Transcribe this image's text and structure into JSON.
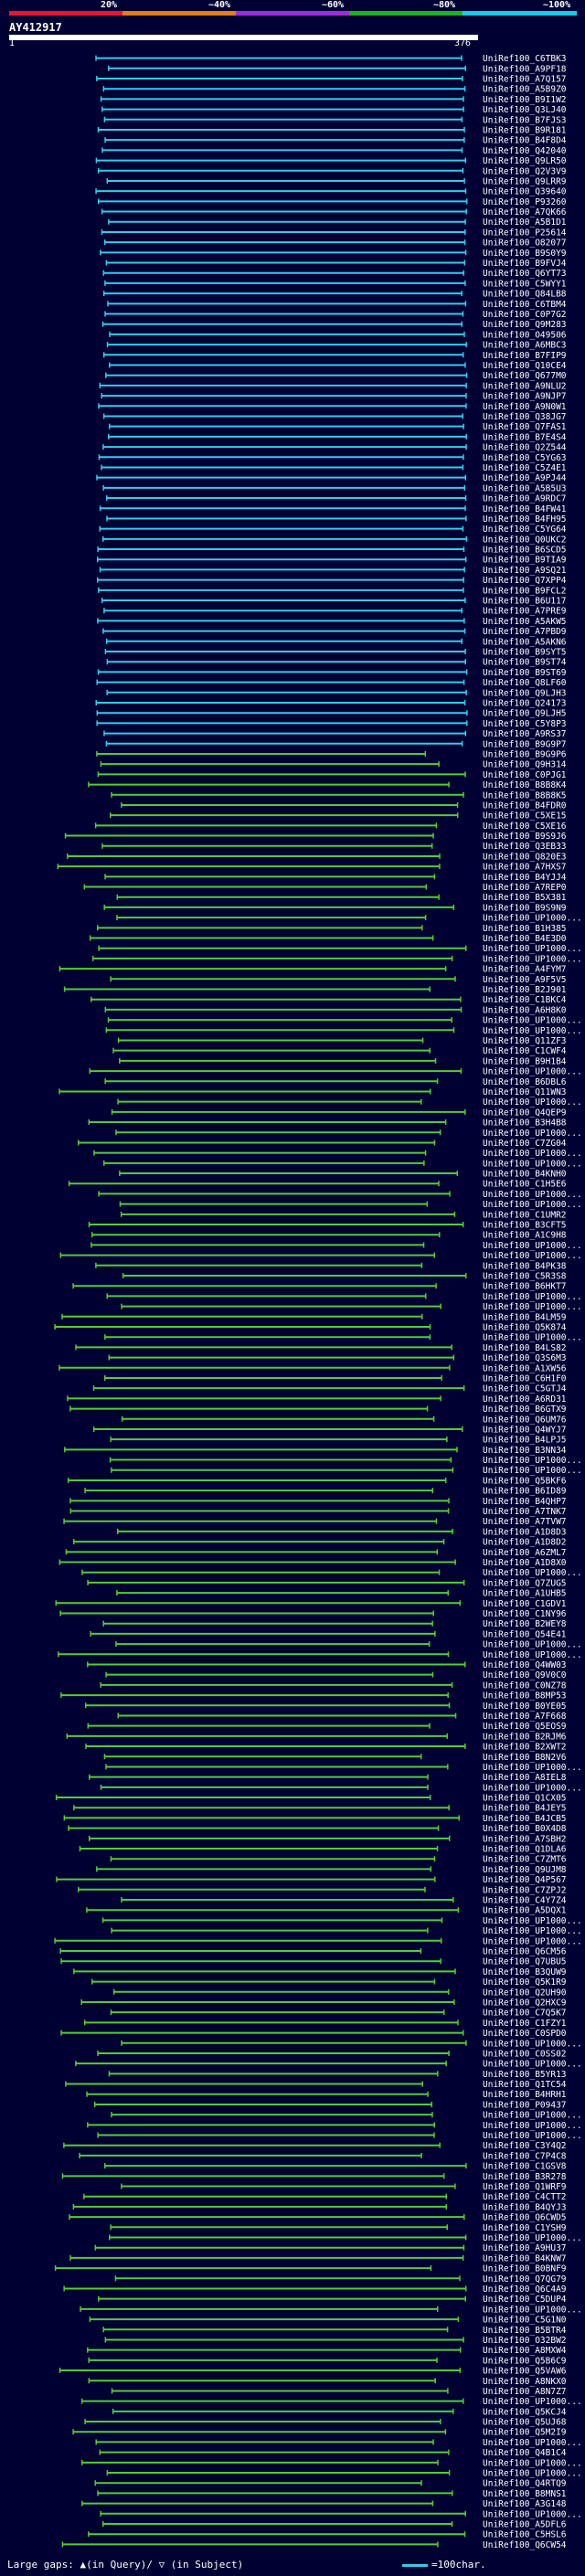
{
  "scale": {
    "labels": [
      "20%",
      "~40%",
      "~60%",
      "~80%",
      "~100%"
    ],
    "colors": [
      "#e8172f",
      "#e87c17",
      "#9b2fd6",
      "#1bb31b",
      "#1fc8e8"
    ]
  },
  "query": {
    "name": "AY412917",
    "start": "1",
    "end": "376"
  },
  "hit_colors": {
    "high": "#33ccee",
    "mid": "#55cc33"
  },
  "hits": [
    "UniRef100_C6TBK3",
    "UniRef100_A9PF18",
    "UniRef100_A7Q157",
    "UniRef100_A5B9Z0",
    "UniRef100_B9I1W2",
    "UniRef100_Q3LJ40",
    "UniRef100_B7FJS3",
    "UniRef100_B9R181",
    "UniRef100_B4F8D4",
    "UniRef100_Q42040",
    "UniRef100_Q9LR50",
    "UniRef100_Q2V3V9",
    "UniRef100_Q9LRR9",
    "UniRef100_Q39640",
    "UniRef100_P93260",
    "UniRef100_A7QK66",
    "UniRef100_A5B1D1",
    "UniRef100_P25614",
    "UniRef100_O82077",
    "UniRef100_B9S0Y9",
    "UniRef100_B9FVJ4",
    "UniRef100_Q6YT73",
    "UniRef100_C5WYY1",
    "UniRef100_Q84LB8",
    "UniRef100_C6TBM4",
    "UniRef100_C0P7G2",
    "UniRef100_Q9M283",
    "UniRef100_O49506",
    "UniRef100_A6MBC3",
    "UniRef100_B7FIP9",
    "UniRef100_Q10CE4",
    "UniRef100_Q677M0",
    "UniRef100_A9NLU2",
    "UniRef100_A9NJP7",
    "UniRef100_A9N0W1",
    "UniRef100_Q38JG7",
    "UniRef100_Q7FAS1",
    "UniRef100_B7E4S4",
    "UniRef100_Q2Z544",
    "UniRef100_C5YG63",
    "UniRef100_C5Z4E1",
    "UniRef100_A9PJ44",
    "UniRef100_A5B5U3",
    "UniRef100_A9RDC7",
    "UniRef100_B4FW41",
    "UniRef100_B4FH95",
    "UniRef100_C5YG64",
    "UniRef100_Q0UKC2",
    "UniRef100_B6SCD5",
    "UniRef100_B9TIA9",
    "UniRef100_A9SQ21",
    "UniRef100_Q7XPP4",
    "UniRef100_B9FCL2",
    "UniRef100_B6U117",
    "UniRef100_A7PRE9",
    "UniRef100_A5AKW5",
    "UniRef100_A7PBD9",
    "UniRef100_A5AKN6",
    "UniRef100_B9SYT5",
    "UniRef100_B9ST74",
    "UniRef100_B9ST69",
    "UniRef100_Q8LF60",
    "UniRef100_Q9LJH3",
    "UniRef100_Q24173",
    "UniRef100_Q9LJH5",
    "UniRef100_C5Y8P3",
    "UniRef100_A9RS37",
    "UniRef100_B9G9P7",
    "UniRef100_B9G9P6",
    "UniRef100_Q9H314",
    "UniRef100_C0PJG1",
    "UniRef100_B8B8K4",
    "UniRef100_B8B8K5",
    "UniRef100_B4FDR0",
    "UniRef100_C5XE15",
    "UniRef100_C5XE16",
    "UniRef100_B9S9J6",
    "UniRef100_Q3EB33",
    "UniRef100_Q820E3",
    "UniRef100_A7HXS7",
    "UniRef100_B4YJJ4",
    "UniRef100_A7REP0",
    "UniRef100_B5X381",
    "UniRef100_B9S9N9",
    "UniRef100_UP1000...",
    "UniRef100_B1H385",
    "UniRef100_B4E3D0",
    "UniRef100_UP1000...",
    "UniRef100_UP1000...",
    "UniRef100_A4FYM7",
    "UniRef100_A9F5V5",
    "UniRef100_B2J901",
    "UniRef100_C1BKC4",
    "UniRef100_A6H8K0",
    "UniRef100_UP1000...",
    "UniRef100_UP1000...",
    "UniRef100_Q11ZF3",
    "UniRef100_C1CWF4",
    "UniRef100_B9H1B4",
    "UniRef100_UP1000...",
    "UniRef100_B6DBL6",
    "UniRef100_Q11WN3",
    "UniRef100_UP1000...",
    "UniRef100_Q4QEP9",
    "UniRef100_B3H4B8",
    "UniRef100_UP1000...",
    "UniRef100_C7ZG04",
    "UniRef100_UP1000...",
    "UniRef100_UP1000...",
    "UniRef100_B4KNH0",
    "UniRef100_C1H5E6",
    "UniRef100_UP1000...",
    "UniRef100_UP1000...",
    "UniRef100_C1UMR2",
    "UniRef100_B3CFT5",
    "UniRef100_A1C9H8",
    "UniRef100_UP1000...",
    "UniRef100_UP1000...",
    "UniRef100_B4PK38",
    "UniRef100_C5R3S8",
    "UniRef100_B6HKT7",
    "UniRef100_UP1000...",
    "UniRef100_UP1000...",
    "UniRef100_B4LM59",
    "UniRef100_Q5K874",
    "UniRef100_UP1000...",
    "UniRef100_B4LS82",
    "UniRef100_Q3S6M3",
    "UniRef100_A1XW56",
    "UniRef100_C6H1F0",
    "UniRef100_C5GTJ4",
    "UniRef100_A6RD31",
    "UniRef100_B6GTX9",
    "UniRef100_Q6UM76",
    "UniRef100_Q4WYJ7",
    "UniRef100_B4LPJ5",
    "UniRef100_B3NN34",
    "UniRef100_UP1000...",
    "UniRef100_UP1000...",
    "UniRef100_Q5BKF6",
    "UniRef100_B6ID89",
    "UniRef100_B4QHP7",
    "UniRef100_A7TNK7",
    "UniRef100_A7TVW7",
    "UniRef100_A1D8D3",
    "UniRef100_A1D8D2",
    "UniRef100_A6ZML7",
    "UniRef100_A1D8X0",
    "UniRef100_UP1000...",
    "UniRef100_Q7ZUG5",
    "UniRef100_A1UHB5",
    "UniRef100_C1GDV1",
    "UniRef100_C1NY96",
    "UniRef100_B2WEY8",
    "UniRef100_Q54E41",
    "UniRef100_UP1000...",
    "UniRef100_UP1000...",
    "UniRef100_Q4WW03",
    "UniRef100_Q9V0C0",
    "UniRef100_C0NZ78",
    "UniRef100_B8MP53",
    "UniRef100_B0YE05",
    "UniRef100_A7F668",
    "UniRef100_Q5EOS9",
    "UniRef100_B2RJM6",
    "UniRef100_B2XWT2",
    "UniRef100_B8N2V6",
    "UniRef100_UP1000...",
    "UniRef100_A8IEL8",
    "UniRef100_UP1000...",
    "UniRef100_Q1CX05",
    "UniRef100_B4JEY5",
    "UniRef100_B4JCB5",
    "UniRef100_B0X4D8",
    "UniRef100_A7SBH2",
    "UniRef100_Q1DLA6",
    "UniRef100_C7ZMT6",
    "UniRef100_Q9UJM8",
    "UniRef100_Q4P567",
    "UniRef100_C7ZPJ2",
    "UniRef100_C4Y7Z4",
    "UniRef100_A5DQX1",
    "UniRef100_UP1000...",
    "UniRef100_UP1000...",
    "UniRef100_UP1000...",
    "UniRef100_Q6CM56",
    "UniRef100_Q7UBU5",
    "UniRef100_B3QUW9",
    "UniRef100_Q5K1R9",
    "UniRef100_Q2UH90",
    "UniRef100_Q2HXC9",
    "UniRef100_C7Q5K7",
    "UniRef100_C1FZY1",
    "UniRef100_C0SPD0",
    "UniRef100_UP1000...",
    "UniRef100_C0SS02",
    "UniRef100_UP1000...",
    "UniRef100_B5YR13",
    "UniRef100_Q1TC54",
    "UniRef100_B4HRH1",
    "UniRef100_P09437",
    "UniRef100_UP1000...",
    "UniRef100_UP1000...",
    "UniRef100_UP1000...",
    "UniRef100_C3Y4Q2",
    "UniRef100_C7P4C8",
    "UniRef100_C1GSV8",
    "UniRef100_B3R278",
    "UniRef100_Q1WRF9",
    "UniRef100_C4CTT2",
    "UniRef100_B4QYJ3",
    "UniRef100_Q6CWD5",
    "UniRef100_C1YSH9",
    "UniRef100_UP1000...",
    "UniRef100_A9HU37",
    "UniRef100_B4KNW7",
    "UniRef100_B0BNF9",
    "UniRef100_Q7QG79",
    "UniRef100_Q6C4A9",
    "UniRef100_C5DUP4",
    "UniRef100_UP1000...",
    "UniRef100_C5G1N0",
    "UniRef100_B5BTR4",
    "UniRef100_O32BW2",
    "UniRef100_A8MXW4",
    "UniRef100_Q5B6C9",
    "UniRef100_Q5VAW6",
    "UniRef100_A8NKX0",
    "UniRef100_A8N7Z7",
    "UniRef100_UP1000...",
    "UniRef100_Q5KCJ4",
    "UniRef100_Q5UJ68",
    "UniRef100_Q5M2I9",
    "UniRef100_UP1000...",
    "UniRef100_Q4B1C4",
    "UniRef100_UP1000...",
    "UniRef100_UP1000...",
    "UniRef100_Q4RTQ9",
    "UniRef100_B8MNS1",
    "UniRef100_A3G148",
    "UniRef100_UP1000...",
    "UniRef100_A5DFL6",
    "UniRef100_C5HSL6",
    "UniRef100_Q6CW54"
  ],
  "legend": {
    "text": "Large gaps: ▲(in Query)/ ▽ (in Subject)",
    "scale_text": "=100char."
  }
}
